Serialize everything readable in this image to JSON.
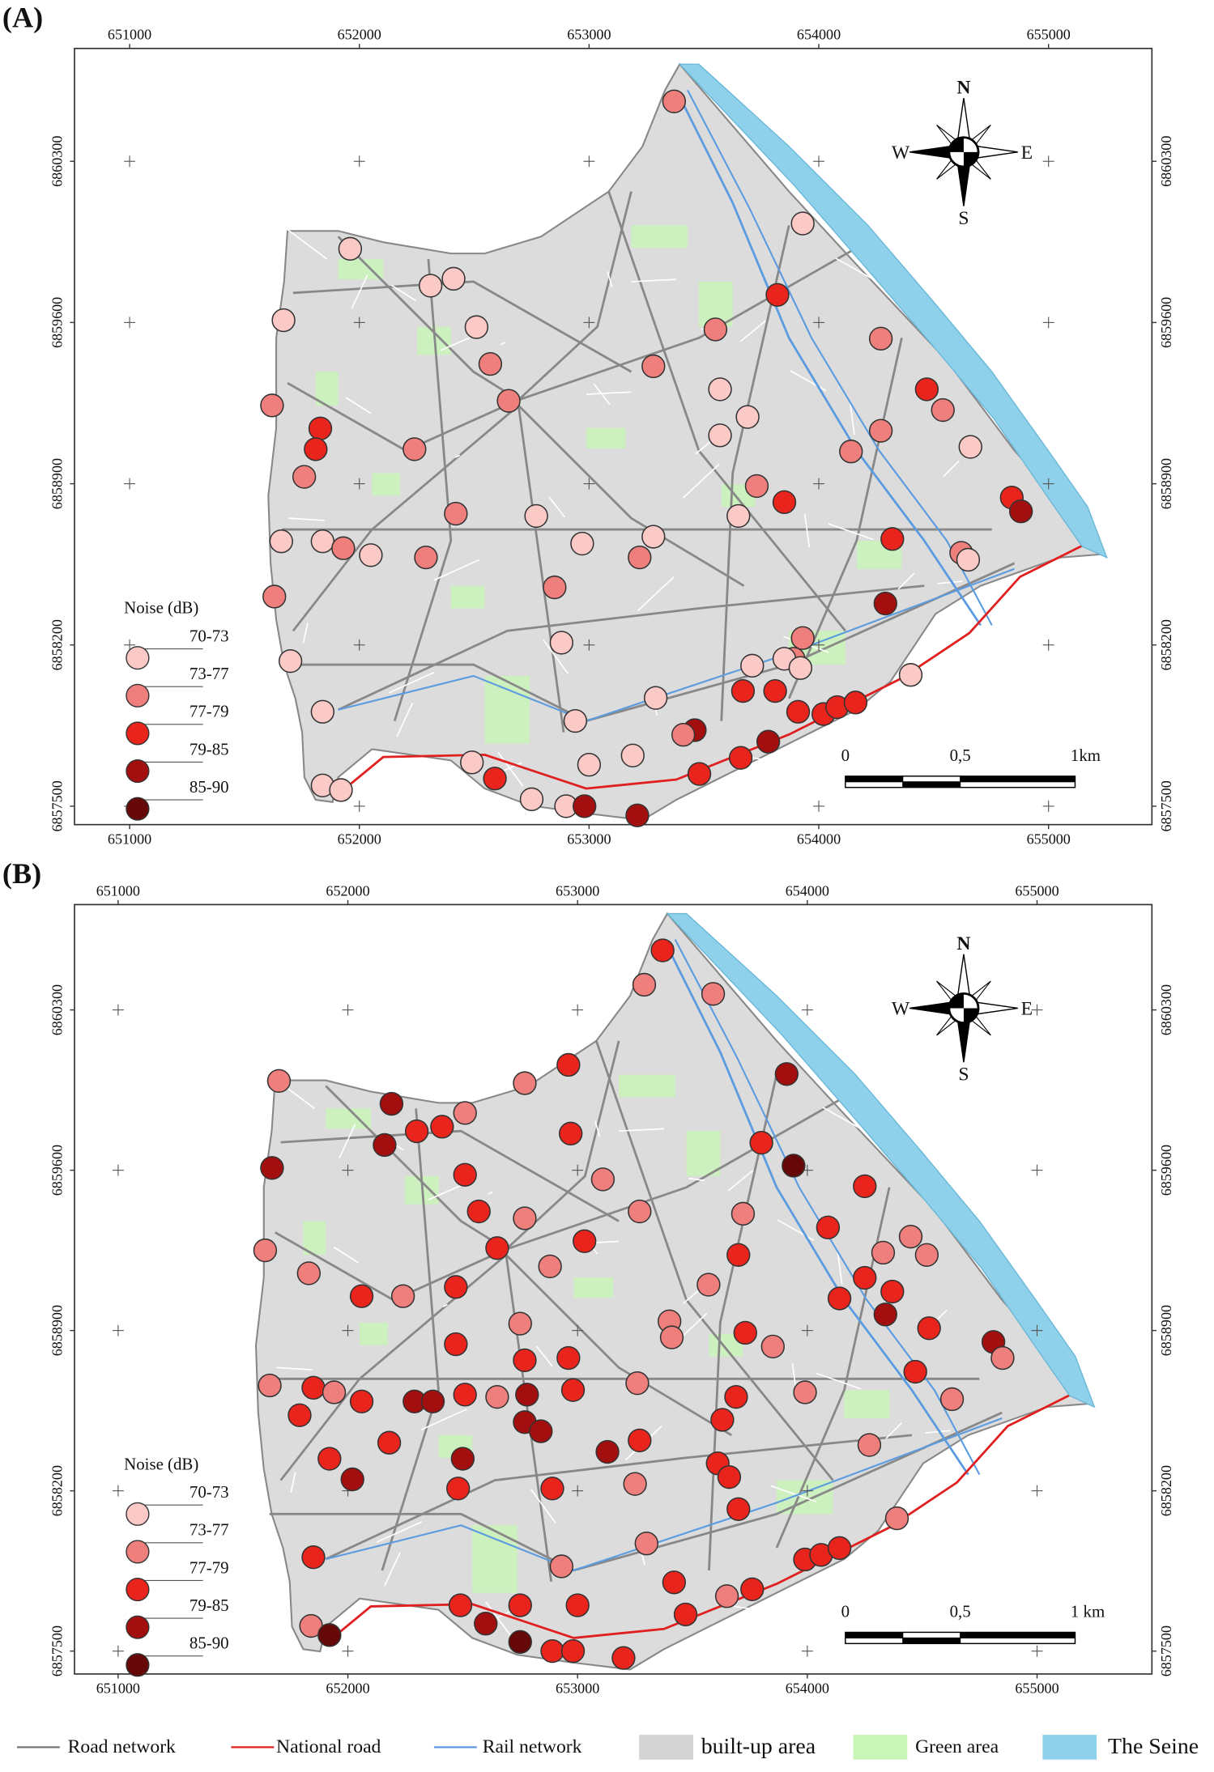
{
  "panels": [
    {
      "label": "(A)",
      "xlim": [
        650760,
        655450
      ],
      "ylim": [
        6857420,
        6860790
      ],
      "xticks": [
        651000,
        652000,
        653000,
        654000,
        655000
      ],
      "yticks": [
        6857500,
        6858200,
        6858900,
        6859600,
        6860300
      ],
      "scale_ticks": [
        0,
        {
          "value": 0.5,
          "label": "0,5"
        },
        {
          "value": 1,
          "label": "1km"
        }
      ],
      "points": [
        [
          653370,
          6860560,
          1
        ],
        [
          653930,
          6860030,
          0
        ],
        [
          651960,
          6859920,
          0
        ],
        [
          652310,
          6859760,
          0
        ],
        [
          652410,
          6859790,
          0
        ],
        [
          651670,
          6859610,
          0
        ],
        [
          653820,
          6859720,
          2
        ],
        [
          652510,
          6859580,
          0
        ],
        [
          653550,
          6859570,
          1
        ],
        [
          654270,
          6859530,
          1
        ],
        [
          652570,
          6859420,
          1
        ],
        [
          653280,
          6859410,
          1
        ],
        [
          653570,
          6859310,
          0
        ],
        [
          651620,
          6859240,
          1
        ],
        [
          652650,
          6859260,
          1
        ],
        [
          653690,
          6859190,
          0
        ],
        [
          654470,
          6859310,
          2
        ],
        [
          654540,
          6859220,
          1
        ],
        [
          651830,
          6859140,
          2
        ],
        [
          653570,
          6859110,
          0
        ],
        [
          654270,
          6859130,
          1
        ],
        [
          651810,
          6859050,
          2
        ],
        [
          652240,
          6859050,
          1
        ],
        [
          654140,
          6859040,
          1
        ],
        [
          654660,
          6859060,
          0
        ],
        [
          651760,
          6858930,
          1
        ],
        [
          653730,
          6858890,
          1
        ],
        [
          653850,
          6858820,
          2
        ],
        [
          654840,
          6858840,
          2
        ],
        [
          654880,
          6858780,
          3
        ],
        [
          652420,
          6858770,
          1
        ],
        [
          652770,
          6858760,
          0
        ],
        [
          653650,
          6858760,
          0
        ],
        [
          651660,
          6858650,
          0
        ],
        [
          651840,
          6858650,
          0
        ],
        [
          651930,
          6858620,
          1
        ],
        [
          652050,
          6858590,
          0
        ],
        [
          652290,
          6858580,
          1
        ],
        [
          652970,
          6858640,
          0
        ],
        [
          653280,
          6858670,
          0
        ],
        [
          653220,
          6858580,
          1
        ],
        [
          654320,
          6858660,
          2
        ],
        [
          654620,
          6858600,
          1
        ],
        [
          654650,
          6858570,
          0
        ],
        [
          651630,
          6858410,
          1
        ],
        [
          652850,
          6858450,
          1
        ],
        [
          654290,
          6858380,
          3
        ],
        [
          653930,
          6858230,
          1
        ],
        [
          652880,
          6858210,
          0
        ],
        [
          653890,
          6858140,
          1
        ],
        [
          651700,
          6858130,
          0
        ],
        [
          653710,
          6858110,
          0
        ],
        [
          653850,
          6858140,
          0
        ],
        [
          653920,
          6858100,
          0
        ],
        [
          654400,
          6858070,
          0
        ],
        [
          653290,
          6857970,
          0
        ],
        [
          653670,
          6858000,
          2
        ],
        [
          653810,
          6858000,
          2
        ],
        [
          651840,
          6857910,
          0
        ],
        [
          652940,
          6857870,
          0
        ],
        [
          653910,
          6857910,
          2
        ],
        [
          654020,
          6857900,
          2
        ],
        [
          654080,
          6857930,
          2
        ],
        [
          654160,
          6857950,
          2
        ],
        [
          653460,
          6857830,
          3
        ],
        [
          653410,
          6857810,
          1
        ],
        [
          653190,
          6857720,
          0
        ],
        [
          653000,
          6857680,
          0
        ],
        [
          652490,
          6857690,
          0
        ],
        [
          653780,
          6857780,
          3
        ],
        [
          653660,
          6857710,
          2
        ],
        [
          653480,
          6857640,
          2
        ],
        [
          652590,
          6857620,
          2
        ],
        [
          651840,
          6857590,
          0
        ],
        [
          651920,
          6857570,
          0
        ],
        [
          652750,
          6857530,
          0
        ],
        [
          652900,
          6857500,
          0
        ],
        [
          652980,
          6857500,
          3
        ],
        [
          653210,
          6857460,
          3
        ]
      ]
    },
    {
      "label": "(B)",
      "xlim": [
        650810,
        655500
      ],
      "ylim": [
        6857400,
        6860760
      ],
      "xticks": [
        651000,
        652000,
        653000,
        654000,
        655000
      ],
      "yticks": [
        6857500,
        6858200,
        6858900,
        6859600,
        6860300
      ],
      "scale_ticks": [
        0,
        {
          "value": 0.5,
          "label": "0,5"
        },
        {
          "value": 1,
          "label": "1 km"
        }
      ],
      "points": [
        [
          653370,
          6860560,
          2
        ],
        [
          653290,
          6860410,
          1
        ],
        [
          653590,
          6860370,
          1
        ],
        [
          652960,
          6860060,
          2
        ],
        [
          653910,
          6860020,
          3
        ],
        [
          651700,
          6859990,
          1
        ],
        [
          652190,
          6859890,
          3
        ],
        [
          652770,
          6859980,
          1
        ],
        [
          652510,
          6859850,
          1
        ],
        [
          652410,
          6859790,
          2
        ],
        [
          652300,
          6859770,
          2
        ],
        [
          652160,
          6859710,
          3
        ],
        [
          652970,
          6859760,
          2
        ],
        [
          653800,
          6859720,
          2
        ],
        [
          653940,
          6859620,
          4
        ],
        [
          651670,
          6859610,
          3
        ],
        [
          654250,
          6859530,
          2
        ],
        [
          652510,
          6859580,
          2
        ],
        [
          653110,
          6859560,
          1
        ],
        [
          652570,
          6859420,
          2
        ],
        [
          652770,
          6859390,
          1
        ],
        [
          653270,
          6859420,
          1
        ],
        [
          653720,
          6859410,
          1
        ],
        [
          654090,
          6859350,
          2
        ],
        [
          654450,
          6859310,
          1
        ],
        [
          653030,
          6859290,
          2
        ],
        [
          652650,
          6859260,
          2
        ],
        [
          653700,
          6859230,
          2
        ],
        [
          651640,
          6859250,
          1
        ],
        [
          651830,
          6859150,
          1
        ],
        [
          654330,
          6859240,
          1
        ],
        [
          654520,
          6859230,
          1
        ],
        [
          652060,
          6859050,
          2
        ],
        [
          652240,
          6859050,
          1
        ],
        [
          652470,
          6859090,
          2
        ],
        [
          652880,
          6859180,
          1
        ],
        [
          653570,
          6859100,
          1
        ],
        [
          654250,
          6859130,
          2
        ],
        [
          654370,
          6859070,
          2
        ],
        [
          654140,
          6859040,
          2
        ],
        [
          654340,
          6858970,
          3
        ],
        [
          654530,
          6858910,
          2
        ],
        [
          652750,
          6858930,
          1
        ],
        [
          653400,
          6858940,
          1
        ],
        [
          653410,
          6858870,
          1
        ],
        [
          653730,
          6858890,
          2
        ],
        [
          653850,
          6858830,
          1
        ],
        [
          654810,
          6858850,
          3
        ],
        [
          654850,
          6858780,
          1
        ],
        [
          652470,
          6858840,
          2
        ],
        [
          652770,
          6858770,
          2
        ],
        [
          652960,
          6858780,
          2
        ],
        [
          654470,
          6858720,
          2
        ],
        [
          651660,
          6858660,
          1
        ],
        [
          651850,
          6858650,
          2
        ],
        [
          651940,
          6858630,
          1
        ],
        [
          652060,
          6858590,
          2
        ],
        [
          652290,
          6858590,
          3
        ],
        [
          652370,
          6858590,
          3
        ],
        [
          652510,
          6858620,
          2
        ],
        [
          652650,
          6858610,
          1
        ],
        [
          652780,
          6858620,
          3
        ],
        [
          652980,
          6858640,
          2
        ],
        [
          653260,
          6858670,
          1
        ],
        [
          653690,
          6858610,
          2
        ],
        [
          653990,
          6858630,
          1
        ],
        [
          654630,
          6858600,
          1
        ],
        [
          651790,
          6858530,
          2
        ],
        [
          652770,
          6858500,
          3
        ],
        [
          652840,
          6858460,
          3
        ],
        [
          653630,
          6858510,
          2
        ],
        [
          652180,
          6858410,
          2
        ],
        [
          653130,
          6858370,
          3
        ],
        [
          653270,
          6858420,
          2
        ],
        [
          654270,
          6858400,
          1
        ],
        [
          653610,
          6858320,
          2
        ],
        [
          651920,
          6858340,
          2
        ],
        [
          652500,
          6858340,
          3
        ],
        [
          653660,
          6858260,
          2
        ],
        [
          652020,
          6858250,
          3
        ],
        [
          652480,
          6858210,
          2
        ],
        [
          652890,
          6858210,
          2
        ],
        [
          653250,
          6858230,
          1
        ],
        [
          653700,
          6858120,
          2
        ],
        [
          654390,
          6858080,
          1
        ],
        [
          651850,
          6857910,
          2
        ],
        [
          652930,
          6857870,
          1
        ],
        [
          653300,
          6857970,
          1
        ],
        [
          653990,
          6857900,
          2
        ],
        [
          654060,
          6857920,
          2
        ],
        [
          654140,
          6857950,
          2
        ],
        [
          653760,
          6857770,
          2
        ],
        [
          653650,
          6857740,
          1
        ],
        [
          653420,
          6857800,
          2
        ],
        [
          652490,
          6857700,
          2
        ],
        [
          652750,
          6857700,
          2
        ],
        [
          653000,
          6857700,
          2
        ],
        [
          653470,
          6857660,
          2
        ],
        [
          652600,
          6857620,
          3
        ],
        [
          651840,
          6857610,
          1
        ],
        [
          651920,
          6857570,
          4
        ],
        [
          652750,
          6857540,
          4
        ],
        [
          652890,
          6857500,
          2
        ],
        [
          652980,
          6857500,
          2
        ],
        [
          653200,
          6857470,
          2
        ]
      ]
    }
  ],
  "compass": {
    "N": "N",
    "E": "E",
    "S": "S",
    "W": "W"
  },
  "legend": {
    "title": "Noise (dB)",
    "classes": [
      {
        "label": "70-73",
        "color": "#fbc9c6"
      },
      {
        "label": "73-77",
        "color": "#ef7f7c"
      },
      {
        "label": "77-79",
        "color": "#e8241c"
      },
      {
        "label": "79-85",
        "color": "#a30f0f"
      },
      {
        "label": "85-90",
        "color": "#660808"
      }
    ]
  },
  "map_legend": [
    {
      "label": "Road network",
      "kind": "line",
      "color": "#777777"
    },
    {
      "label": "National road",
      "kind": "line",
      "color": "#e02020"
    },
    {
      "label": "Rail network",
      "kind": "line",
      "color": "#5b9be0"
    },
    {
      "label": "built-up area",
      "kind": "box",
      "color": "#d4d4d4"
    },
    {
      "label": "Green area",
      "kind": "box",
      "color": "#c9f5b8"
    },
    {
      "label": "The Seine",
      "kind": "box",
      "color": "#8fd0ea"
    }
  ]
}
